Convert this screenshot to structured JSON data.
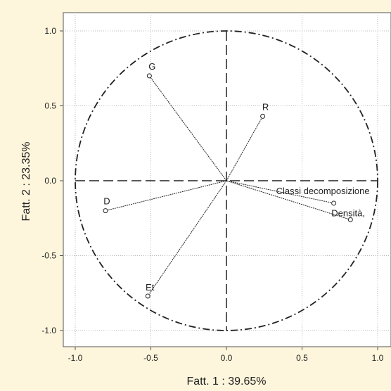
{
  "chart_data": {
    "type": "scatter",
    "title": "",
    "xlabel": "Fatt.   1 : 39.65%",
    "ylabel": "Fatt.   2 : 23.35%",
    "xlim": [
      -1.1,
      1.1
    ],
    "ylim": [
      -1.1,
      1.1
    ],
    "x_ticks": [
      "-1.0",
      "-0.5",
      "0.0",
      "0.5",
      "1.0"
    ],
    "y_ticks": [
      "1.0",
      "0.5",
      "0.0",
      "-0.5",
      "-1.0"
    ],
    "grid": true,
    "unit_circle": true,
    "points": [
      {
        "label": "G",
        "x": -0.51,
        "y": 0.7
      },
      {
        "label": "R",
        "x": 0.24,
        "y": 0.43
      },
      {
        "label": "D",
        "x": -0.8,
        "y": -0.2
      },
      {
        "label": "Classi decomposizione",
        "x": 0.71,
        "y": -0.15
      },
      {
        "label": "Densità,",
        "x": 0.82,
        "y": -0.26
      },
      {
        "label": "Et",
        "x": -0.52,
        "y": -0.77
      }
    ],
    "colors": {
      "background": "#fdf5dc",
      "plot_area": "#ffffff",
      "ink": "#222222",
      "grid": "#b8b8b8"
    }
  }
}
